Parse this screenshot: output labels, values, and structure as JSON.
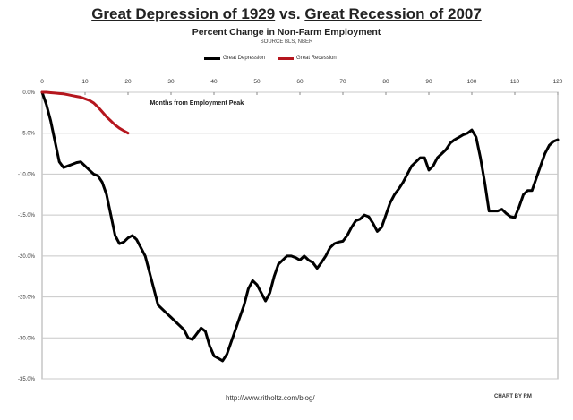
{
  "title": {
    "left": "Great Depression of 1929",
    "vs": "vs.",
    "right": "Great Recession of 2007"
  },
  "subtitle": "Percent Change in Non-Farm Employment",
  "source": "SOURCE BLS, NBER",
  "annotation": "Months from Employment Peak",
  "footer_url": "http://www.ritholtz.com/blog/",
  "footer_credit": "CHART BY RM",
  "chart_data": {
    "type": "line",
    "xlim": [
      0,
      120
    ],
    "ylim": [
      -35,
      0
    ],
    "x_ticks": [
      0,
      10,
      20,
      30,
      40,
      50,
      60,
      70,
      80,
      90,
      100,
      110,
      120
    ],
    "y_ticks": [
      {
        "value": 0,
        "label": "0.0%"
      },
      {
        "value": -5,
        "label": "-5.0%"
      },
      {
        "value": -10,
        "label": "-10.0%"
      },
      {
        "value": -15,
        "label": "-15.0%"
      },
      {
        "value": -20,
        "label": "-20.0%"
      },
      {
        "value": -25,
        "label": "-25.0%"
      },
      {
        "value": -30,
        "label": "-30.0%"
      },
      {
        "value": -35,
        "label": "-35.0%"
      }
    ],
    "grid": true,
    "legend_position": "top-center",
    "series": [
      {
        "name": "Great Depression",
        "color": "#000000",
        "x": [
          0,
          1,
          2,
          3,
          4,
          5,
          6,
          7,
          8,
          9,
          10,
          11,
          12,
          13,
          14,
          15,
          16,
          17,
          18,
          19,
          20,
          21,
          22,
          23,
          24,
          25,
          26,
          27,
          28,
          29,
          30,
          31,
          32,
          33,
          34,
          35,
          36,
          37,
          38,
          39,
          40,
          41,
          42,
          43,
          44,
          45,
          46,
          47,
          48,
          49,
          50,
          51,
          52,
          53,
          54,
          55,
          56,
          57,
          58,
          59,
          60,
          61,
          62,
          63,
          64,
          65,
          66,
          67,
          68,
          69,
          70,
          71,
          72,
          73,
          74,
          75,
          76,
          77,
          78,
          79,
          80,
          81,
          82,
          83,
          84,
          85,
          86,
          87,
          88,
          89,
          90,
          91,
          92,
          93,
          94,
          95,
          96,
          97,
          98,
          99,
          100,
          101,
          102,
          103,
          104,
          105,
          106,
          107,
          108,
          109,
          110,
          111,
          112,
          113,
          114,
          115,
          116,
          117,
          118,
          119,
          120
        ],
        "values": [
          0,
          -1.5,
          -3.5,
          -6,
          -8.5,
          -9.2,
          -9,
          -8.8,
          -8.6,
          -8.5,
          -9,
          -9.5,
          -10,
          -10.2,
          -11,
          -12.5,
          -15,
          -17.5,
          -18.5,
          -18.3,
          -17.8,
          -17.5,
          -18,
          -19,
          -20,
          -22,
          -24,
          -26,
          -26.5,
          -27,
          -27.5,
          -28,
          -28.5,
          -29,
          -30,
          -30.2,
          -29.5,
          -28.8,
          -29.2,
          -31,
          -32.2,
          -32.5,
          -32.8,
          -32,
          -30.5,
          -29,
          -27.5,
          -26,
          -24,
          -23,
          -23.5,
          -24.5,
          -25.5,
          -24.5,
          -22.5,
          -21,
          -20.5,
          -20,
          -20,
          -20.2,
          -20.5,
          -20,
          -20.5,
          -20.8,
          -21.5,
          -20.8,
          -20,
          -19,
          -18.5,
          -18.3,
          -18.2,
          -17.5,
          -16.5,
          -15.7,
          -15.5,
          -15,
          -15.2,
          -16,
          -17,
          -16.5,
          -15,
          -13.5,
          -12.5,
          -11.8,
          -11,
          -10,
          -9,
          -8.5,
          -8,
          -8,
          -9.5,
          -9,
          -8,
          -7.5,
          -7,
          -6.2,
          -5.8,
          -5.5,
          -5.2,
          -5,
          -4.6,
          -5.5,
          -8,
          -11,
          -14.5,
          -14.5,
          -14.5,
          -14.3,
          -14.8,
          -15.2,
          -15.3,
          -14,
          -12.5,
          -12,
          -12,
          -10.5,
          -9,
          -7.5,
          -6.5,
          -6,
          -5.8
        ]
      },
      {
        "name": "Great Recession",
        "color": "#b5161e",
        "x": [
          0,
          1,
          2,
          3,
          4,
          5,
          6,
          7,
          8,
          9,
          10,
          11,
          12,
          13,
          14,
          15,
          16,
          17,
          18,
          19,
          20
        ],
        "values": [
          0,
          0,
          -0.05,
          -0.1,
          -0.15,
          -0.2,
          -0.3,
          -0.4,
          -0.5,
          -0.6,
          -0.8,
          -1.0,
          -1.3,
          -1.8,
          -2.4,
          -3.0,
          -3.5,
          -4.0,
          -4.4,
          -4.7,
          -5.0
        ]
      }
    ]
  }
}
